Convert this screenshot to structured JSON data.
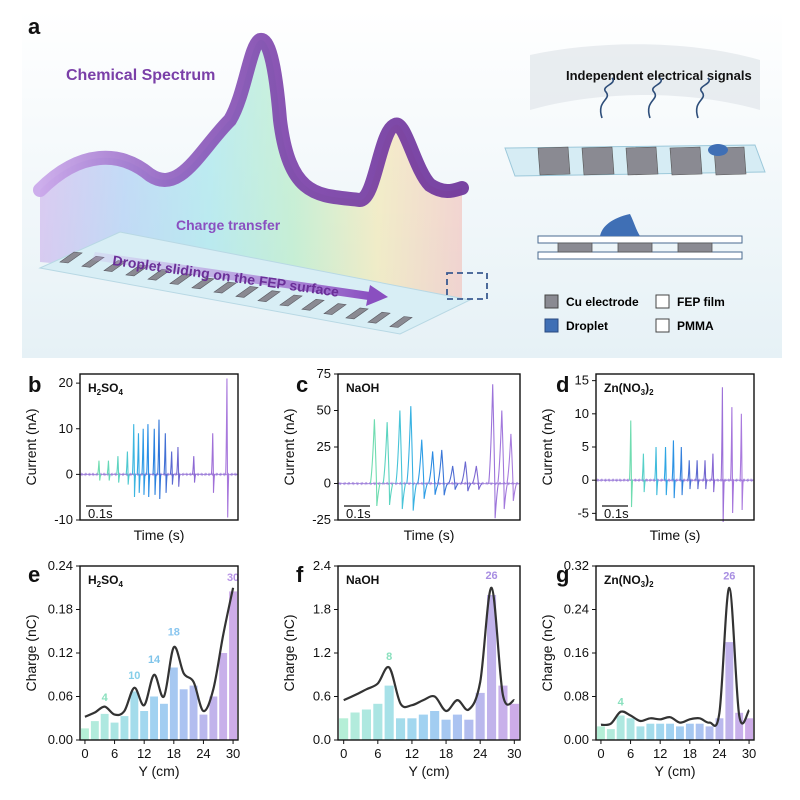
{
  "panel_a": {
    "letter": "a",
    "chemical_spectrum": "Chemical Spectrum",
    "charge_transfer": "Charge transfer",
    "droplet_sliding": "Droplet sliding on the FEP surface",
    "independent_signals": "Independent electrical signals",
    "legend": {
      "cu_electrode": "Cu electrode",
      "droplet": "Droplet",
      "fep_film": "FEP film",
      "pmma": "PMMA"
    },
    "colors": {
      "spectrum_purple": "#7a3fa8",
      "electrode_gray": "#8a8a92",
      "droplet_blue": "#3f6fb5",
      "substrate": "#d7ecf3"
    }
  },
  "chart_data": [
    {
      "id": "b",
      "type": "line",
      "panel_letter": "b",
      "label_base": "H",
      "label_subscripts": [
        [
          "2",
          "SO"
        ],
        [
          "4",
          ""
        ]
      ],
      "label_text": "H2SO4",
      "xlabel": "Time (s)",
      "ylabel": "Current (nA)",
      "ylim": [
        -10,
        22
      ],
      "yticks": [
        -10,
        0,
        10,
        20
      ],
      "scale_bar": "0.1s",
      "peaks": [
        {
          "t": 0.12,
          "a": 3,
          "c": "#6fdcb0"
        },
        {
          "t": 0.18,
          "a": 3,
          "c": "#66d8b8"
        },
        {
          "t": 0.24,
          "a": 4,
          "c": "#5dd3c0"
        },
        {
          "t": 0.3,
          "a": 5,
          "c": "#4ec8d0"
        },
        {
          "t": 0.34,
          "a": 11,
          "c": "#3cb6e0"
        },
        {
          "t": 0.37,
          "a": 9,
          "c": "#34a8e4"
        },
        {
          "t": 0.4,
          "a": 10,
          "c": "#2e9ae6"
        },
        {
          "t": 0.43,
          "a": 11,
          "c": "#2a8ee6"
        },
        {
          "t": 0.47,
          "a": 10,
          "c": "#2a82e0"
        },
        {
          "t": 0.5,
          "a": 12,
          "c": "#3276d8"
        },
        {
          "t": 0.54,
          "a": 9,
          "c": "#4270d4"
        },
        {
          "t": 0.58,
          "a": 5,
          "c": "#5a6ad2"
        },
        {
          "t": 0.62,
          "a": 6,
          "c": "#6e68d0"
        },
        {
          "t": 0.72,
          "a": 4,
          "c": "#8c68d4"
        },
        {
          "t": 0.84,
          "a": 9,
          "c": "#a070d8"
        },
        {
          "t": 0.93,
          "a": 21,
          "c": "#a878dc"
        }
      ]
    },
    {
      "id": "c",
      "type": "line",
      "panel_letter": "c",
      "label_text": "NaOH",
      "xlabel": "Time (s)",
      "ylabel": "Current (nA)",
      "ylim": [
        -25,
        75
      ],
      "yticks": [
        -25,
        0,
        25,
        50,
        75
      ],
      "scale_bar": "0.1s",
      "peaks": [
        {
          "t": 0.2,
          "a": 44,
          "c": "#6fdcb0"
        },
        {
          "t": 0.27,
          "a": 42,
          "c": "#5cd4c0"
        },
        {
          "t": 0.34,
          "a": 50,
          "c": "#48c4d8"
        },
        {
          "t": 0.4,
          "a": 53,
          "c": "#38b2e2"
        },
        {
          "t": 0.46,
          "a": 30,
          "c": "#2e9ee6"
        },
        {
          "t": 0.52,
          "a": 22,
          "c": "#2a8ae2"
        },
        {
          "t": 0.57,
          "a": 23,
          "c": "#3a78d8"
        },
        {
          "t": 0.63,
          "a": 12,
          "c": "#4e6cd2"
        },
        {
          "t": 0.7,
          "a": 15,
          "c": "#6a68d0"
        },
        {
          "t": 0.76,
          "a": 12,
          "c": "#8068d2"
        },
        {
          "t": 0.85,
          "a": 68,
          "c": "#9c74da"
        },
        {
          "t": 0.9,
          "a": 50,
          "c": "#a278dc"
        },
        {
          "t": 0.95,
          "a": 34,
          "c": "#a87cde"
        }
      ]
    },
    {
      "id": "d",
      "type": "line",
      "panel_letter": "d",
      "label_text": "Zn(NO3)2",
      "xlabel": "Time (s)",
      "ylabel": "Current (nA)",
      "ylim": [
        -6,
        16
      ],
      "yticks": [
        -5,
        0,
        5,
        10,
        15
      ],
      "scale_bar": "0.1s",
      "peaks": [
        {
          "t": 0.22,
          "a": 9,
          "c": "#6fdcb0"
        },
        {
          "t": 0.3,
          "a": 4,
          "c": "#56d0c8"
        },
        {
          "t": 0.38,
          "a": 5,
          "c": "#40bcdc"
        },
        {
          "t": 0.44,
          "a": 5,
          "c": "#2ea6e4"
        },
        {
          "t": 0.49,
          "a": 6,
          "c": "#2a92e4"
        },
        {
          "t": 0.54,
          "a": 5,
          "c": "#3480dc"
        },
        {
          "t": 0.59,
          "a": 3,
          "c": "#4a70d4"
        },
        {
          "t": 0.64,
          "a": 3,
          "c": "#5e6ad0"
        },
        {
          "t": 0.69,
          "a": 3,
          "c": "#7468d0"
        },
        {
          "t": 0.74,
          "a": 4,
          "c": "#8868d4"
        },
        {
          "t": 0.8,
          "a": 14,
          "c": "#9c70d8"
        },
        {
          "t": 0.86,
          "a": 11,
          "c": "#a676dc"
        },
        {
          "t": 0.92,
          "a": 10,
          "c": "#aa7ade"
        }
      ]
    },
    {
      "id": "e",
      "type": "bar",
      "panel_letter": "e",
      "label_text": "H2SO4",
      "xlabel": "Y (cm)",
      "ylabel": "Charge (nC)",
      "xlim": [
        -1,
        31
      ],
      "ylim": [
        0,
        0.24
      ],
      "xticks": [
        0,
        6,
        12,
        18,
        24,
        30
      ],
      "yticks": [
        0,
        0.06,
        0.12,
        0.18,
        0.24
      ],
      "ytick_labels": [
        "0.00",
        "0.06",
        "0.12",
        "0.18",
        "0.24"
      ],
      "x": [
        0,
        2,
        4,
        6,
        8,
        10,
        12,
        14,
        16,
        18,
        20,
        22,
        24,
        26,
        28,
        30
      ],
      "values": [
        0.016,
        0.026,
        0.036,
        0.024,
        0.033,
        0.067,
        0.04,
        0.06,
        0.05,
        0.1,
        0.07,
        0.075,
        0.035,
        0.06,
        0.12,
        0.205
      ],
      "fit": [
        0.032,
        0.038,
        0.046,
        0.035,
        0.04,
        0.072,
        0.048,
        0.09,
        0.06,
        0.128,
        0.092,
        0.08,
        0.04,
        0.07,
        0.145,
        0.21
      ],
      "annotations": [
        {
          "x": 4,
          "y": 0.05,
          "text": "4",
          "color": "#8ae0be"
        },
        {
          "x": 10,
          "y": 0.08,
          "text": "10",
          "color": "#86cfe9"
        },
        {
          "x": 14,
          "y": 0.102,
          "text": "14",
          "color": "#7fc4ea"
        },
        {
          "x": 18,
          "y": 0.14,
          "text": "18",
          "color": "#89c6ef"
        },
        {
          "x": 30,
          "y": 0.215,
          "text": "30",
          "color": "#b894e6"
        }
      ]
    },
    {
      "id": "f",
      "type": "bar",
      "panel_letter": "f",
      "label_text": "NaOH",
      "xlabel": "Y (cm)",
      "ylabel": "Charge (nC)",
      "xlim": [
        -1,
        31
      ],
      "ylim": [
        0,
        2.4
      ],
      "xticks": [
        0,
        6,
        12,
        18,
        24,
        30
      ],
      "yticks": [
        0,
        0.6,
        1.2,
        1.8,
        2.4
      ],
      "ytick_labels": [
        "0.0",
        "0.6",
        "1.2",
        "1.8",
        "2.4"
      ],
      "x": [
        0,
        2,
        4,
        6,
        8,
        10,
        12,
        14,
        16,
        18,
        20,
        22,
        24,
        26,
        28,
        30
      ],
      "values": [
        0.3,
        0.38,
        0.42,
        0.5,
        0.75,
        0.3,
        0.3,
        0.35,
        0.4,
        0.28,
        0.35,
        0.28,
        0.65,
        2.0,
        0.75,
        0.5
      ],
      "fit": [
        0.55,
        0.62,
        0.7,
        0.78,
        1.0,
        0.5,
        0.48,
        0.55,
        0.6,
        0.4,
        0.55,
        0.42,
        0.8,
        2.1,
        0.62,
        0.55
      ],
      "annotations": [
        {
          "x": 8,
          "y": 1.06,
          "text": "8",
          "color": "#8ae0be"
        },
        {
          "x": 26,
          "y": 2.18,
          "text": "26",
          "color": "#a88ee2"
        }
      ]
    },
    {
      "id": "g",
      "type": "bar",
      "panel_letter": "g",
      "label_text": "Zn(NO3)2",
      "xlabel": "Y (cm)",
      "ylabel": "Charge (nC)",
      "xlim": [
        -1,
        31
      ],
      "ylim": [
        0,
        0.32
      ],
      "xticks": [
        0,
        6,
        12,
        18,
        24,
        30
      ],
      "yticks": [
        0,
        0.08,
        0.16,
        0.24,
        0.32
      ],
      "ytick_labels": [
        "0.00",
        "0.08",
        "0.16",
        "0.24",
        "0.32"
      ],
      "x": [
        0,
        2,
        4,
        6,
        8,
        10,
        12,
        14,
        16,
        18,
        20,
        22,
        24,
        26,
        28,
        30
      ],
      "values": [
        0.025,
        0.02,
        0.045,
        0.04,
        0.025,
        0.03,
        0.03,
        0.03,
        0.025,
        0.03,
        0.03,
        0.025,
        0.04,
        0.18,
        0.05,
        0.04
      ],
      "fit": [
        0.028,
        0.03,
        0.052,
        0.045,
        0.035,
        0.04,
        0.038,
        0.042,
        0.032,
        0.038,
        0.04,
        0.032,
        0.05,
        0.28,
        0.045,
        0.055
      ],
      "annotations": [
        {
          "x": 4,
          "y": 0.058,
          "text": "4",
          "color": "#8ae0be"
        },
        {
          "x": 26,
          "y": 0.29,
          "text": "26",
          "color": "#a88ee2"
        }
      ]
    }
  ]
}
